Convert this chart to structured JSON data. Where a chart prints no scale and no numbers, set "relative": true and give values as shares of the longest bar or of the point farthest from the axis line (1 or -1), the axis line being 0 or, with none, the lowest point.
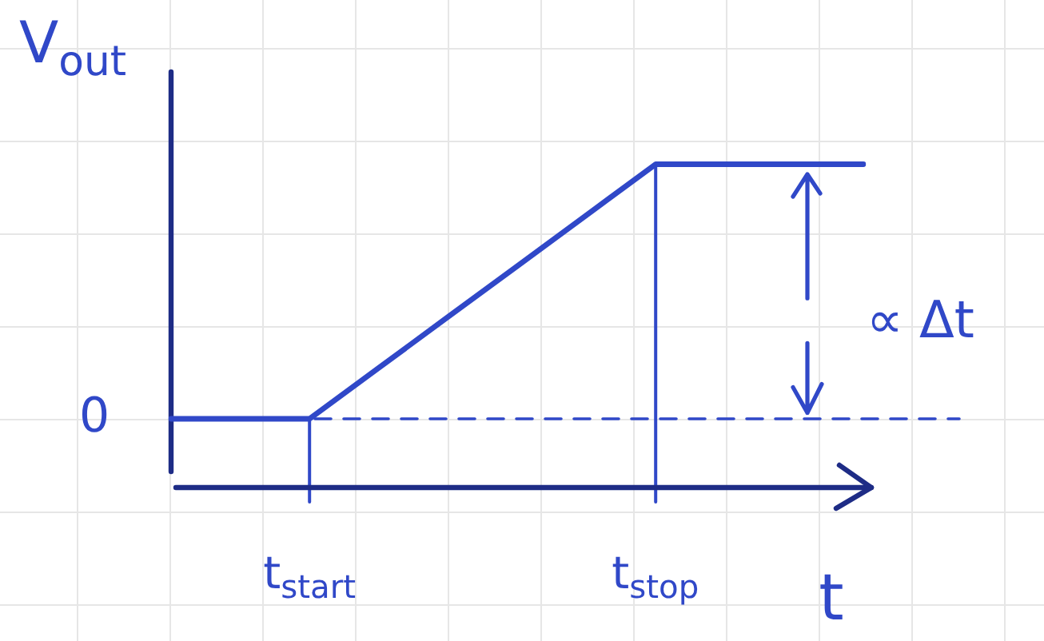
{
  "chart_data": {
    "type": "line",
    "xlabel": "t",
    "ylabel": "V$_{out}$",
    "relative": true,
    "categories": [
      null,
      null,
      "t$_{start}$",
      null,
      null,
      null,
      null,
      "t$_{stop}$",
      null,
      null,
      null
    ],
    "values": [
      0,
      0,
      0,
      0.2,
      0.4,
      0.6,
      0.8,
      1,
      1,
      1,
      1
    ],
    "color": "#3048c8",
    "ref_lines": [
      {
        "axis": "y",
        "value": 0,
        "label": "0",
        "line_style": "dashed",
        "color": "#3048c8"
      }
    ],
    "annotations": [
      "∝ Δt"
    ],
    "marker": "none",
    "line_style": "solid"
  }
}
